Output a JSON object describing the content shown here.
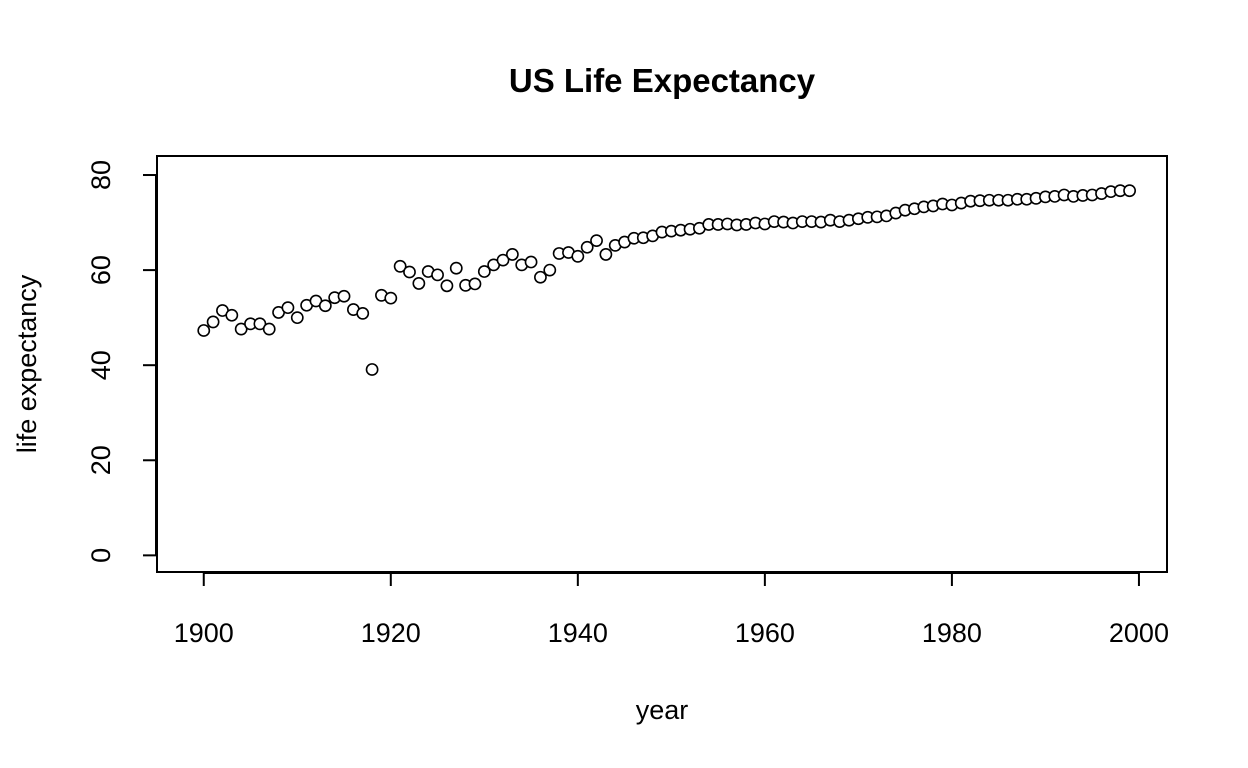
{
  "chart_data": {
    "type": "scatter",
    "title": "US Life Expectancy",
    "xlabel": "year",
    "ylabel": "life expectancy",
    "xlim": [
      1895,
      2003
    ],
    "ylim": [
      -3.5,
      84
    ],
    "x_ticks": [
      1900,
      1920,
      1940,
      1960,
      1980,
      2000
    ],
    "y_ticks": [
      0,
      20,
      40,
      60,
      80
    ],
    "grid": false,
    "legend": "none",
    "series": [
      {
        "x": [
          1900,
          1901,
          1902,
          1903,
          1904,
          1905,
          1906,
          1907,
          1908,
          1909,
          1910,
          1911,
          1912,
          1913,
          1914,
          1915,
          1916,
          1917,
          1918,
          1919,
          1920,
          1921,
          1922,
          1923,
          1924,
          1925,
          1926,
          1927,
          1928,
          1929,
          1930,
          1931,
          1932,
          1933,
          1934,
          1935,
          1936,
          1937,
          1938,
          1939,
          1940,
          1941,
          1942,
          1943,
          1944,
          1945,
          1946,
          1947,
          1948,
          1949,
          1950,
          1951,
          1952,
          1953,
          1954,
          1955,
          1956,
          1957,
          1958,
          1959,
          1960,
          1961,
          1962,
          1963,
          1964,
          1965,
          1966,
          1967,
          1968,
          1969,
          1970,
          1971,
          1972,
          1973,
          1974,
          1975,
          1976,
          1977,
          1978,
          1979,
          1980,
          1981,
          1982,
          1983,
          1984,
          1985,
          1986,
          1987,
          1988,
          1989,
          1990,
          1991,
          1992,
          1993,
          1994,
          1995,
          1996,
          1997,
          1998,
          1999
        ],
        "values": [
          47.3,
          49.1,
          51.5,
          50.5,
          47.6,
          48.7,
          48.7,
          47.6,
          51.1,
          52.1,
          50.0,
          52.6,
          53.5,
          52.5,
          54.2,
          54.5,
          51.7,
          50.9,
          39.1,
          54.7,
          54.1,
          60.8,
          59.6,
          57.2,
          59.7,
          59.0,
          56.7,
          60.4,
          56.8,
          57.1,
          59.7,
          61.1,
          62.1,
          63.3,
          61.1,
          61.7,
          58.5,
          60.0,
          63.5,
          63.7,
          62.9,
          64.8,
          66.2,
          63.3,
          65.2,
          65.9,
          66.7,
          66.8,
          67.2,
          68.0,
          68.2,
          68.4,
          68.6,
          68.8,
          69.6,
          69.6,
          69.7,
          69.5,
          69.6,
          69.9,
          69.7,
          70.2,
          70.1,
          69.9,
          70.2,
          70.2,
          70.1,
          70.5,
          70.2,
          70.5,
          70.8,
          71.1,
          71.2,
          71.4,
          72.0,
          72.6,
          72.9,
          73.3,
          73.5,
          73.9,
          73.7,
          74.1,
          74.5,
          74.6,
          74.7,
          74.7,
          74.7,
          74.9,
          74.9,
          75.1,
          75.4,
          75.5,
          75.8,
          75.5,
          75.7,
          75.8,
          76.1,
          76.5,
          76.7,
          76.7
        ]
      }
    ]
  }
}
